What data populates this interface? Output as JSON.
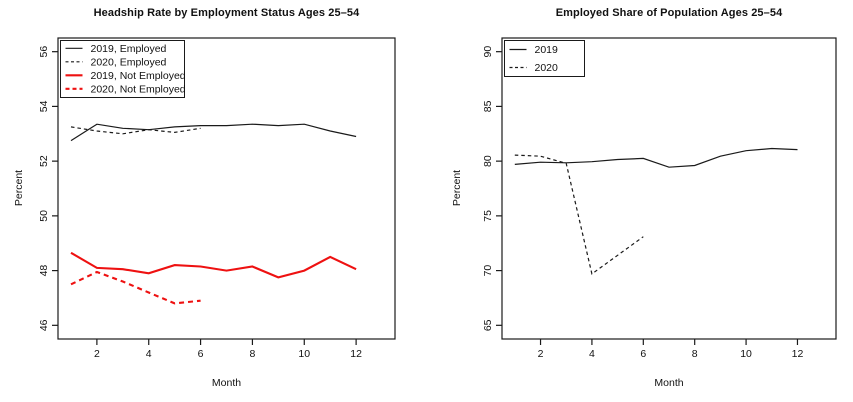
{
  "chart_data": [
    {
      "type": "line",
      "title": "Headship Rate by Employment Status Ages 25–54",
      "xlabel": "Month",
      "ylabel": "Percent",
      "x": [
        1,
        2,
        3,
        4,
        5,
        6,
        7,
        8,
        9,
        10,
        11,
        12
      ],
      "series": [
        {
          "name": "2019, Employed",
          "color": "#1a1a1a",
          "dash": "solid",
          "width": 1.2,
          "values": [
            52.75,
            53.35,
            53.2,
            53.15,
            53.25,
            53.3,
            53.3,
            53.35,
            53.3,
            53.35,
            53.1,
            52.9
          ]
        },
        {
          "name": "2020, Employed",
          "color": "#1a1a1a",
          "dash": "dashed",
          "width": 1.2,
          "values": [
            53.25,
            53.1,
            53.0,
            53.15,
            53.05,
            53.2
          ]
        },
        {
          "name": "2019, Not Employed",
          "color": "#ee1111",
          "dash": "solid",
          "width": 2.1,
          "values": [
            48.65,
            48.1,
            48.05,
            47.9,
            48.2,
            48.15,
            48.0,
            48.15,
            47.75,
            48.0,
            48.5,
            48.05
          ]
        },
        {
          "name": "2020, Not Employed",
          "color": "#ee1111",
          "dash": "dashed",
          "width": 2.1,
          "values": [
            47.5,
            47.95,
            47.6,
            47.2,
            46.8,
            46.9
          ]
        }
      ],
      "xlim": [
        0.5,
        13.5
      ],
      "ylim": [
        45.5,
        56.5
      ],
      "xticks": [
        2,
        4,
        6,
        8,
        10,
        12
      ],
      "yticks": [
        46,
        48,
        50,
        52,
        54,
        56
      ],
      "grid": false,
      "legend_position": "topleft"
    },
    {
      "type": "line",
      "title": "Employed Share of Population Ages 25–54",
      "xlabel": "Month",
      "ylabel": "Percent",
      "x": [
        1,
        2,
        3,
        4,
        5,
        6,
        7,
        8,
        9,
        10,
        11,
        12
      ],
      "series": [
        {
          "name": "2019",
          "color": "#1a1a1a",
          "dash": "solid",
          "width": 1.2,
          "values": [
            79.7,
            79.9,
            79.85,
            79.95,
            80.15,
            80.25,
            79.45,
            79.6,
            80.45,
            80.95,
            81.15,
            81.05
          ]
        },
        {
          "name": "2020",
          "color": "#1a1a1a",
          "dash": "dashed",
          "width": 1.2,
          "values": [
            80.55,
            80.45,
            79.8,
            69.7,
            71.4,
            73.1
          ]
        }
      ],
      "xlim": [
        0.5,
        13.5
      ],
      "ylim": [
        63.75,
        91.25
      ],
      "xticks": [
        2,
        4,
        6,
        8,
        10,
        12
      ],
      "yticks": [
        65,
        70,
        75,
        80,
        85,
        90
      ],
      "grid": false,
      "legend_position": "topleft"
    }
  ]
}
